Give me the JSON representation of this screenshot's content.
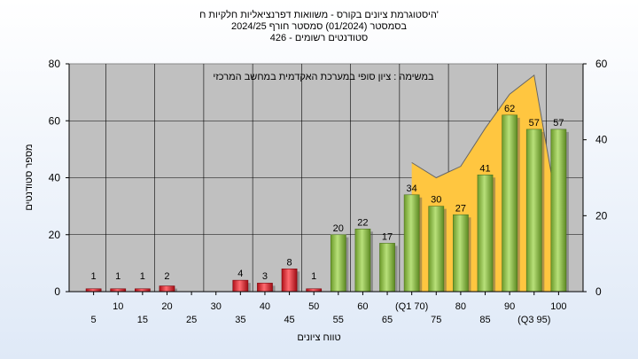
{
  "chart_data": {
    "type": "bar",
    "title_lines": [
      "היסטוגרמת ציונים בקורס - משוואות דפרנציאליות חלקיות ח'",
      "בסמסטר  (01/2024)  סמסטר חורף 2024/25",
      "סטודנטים רשומים - 426"
    ],
    "subtitle": "במשימה : ציון סופי במערכת האקדמית במחשב המרכזי",
    "xlabel": "טווח ציונים",
    "ylabel": "מספר סטודנטים",
    "ylim": [
      0,
      80
    ],
    "y2lim": [
      0,
      60
    ],
    "yticks": [
      "0",
      "20",
      "40",
      "60",
      "80"
    ],
    "y2ticks": [
      "0",
      "20",
      "40",
      "60"
    ],
    "categories": [
      "5",
      "10",
      "15",
      "20",
      "25",
      "30",
      "35",
      "40",
      "45",
      "50",
      "55",
      "60",
      "65",
      "(Q1 70)",
      "75",
      "80",
      "85",
      "90",
      "(Q3 95)",
      "100"
    ],
    "values": [
      1,
      1,
      1,
      2,
      0,
      0,
      4,
      3,
      8,
      1,
      20,
      22,
      17,
      34,
      30,
      27,
      41,
      62,
      57,
      57
    ],
    "data_labels": [
      "1",
      "1",
      "1",
      "2",
      "",
      "",
      "4",
      "3",
      "8",
      "1",
      "20",
      "22",
      "17",
      "34",
      "30",
      "27",
      "41",
      "62",
      "57",
      "57"
    ],
    "area_series": {
      "values": [
        null,
        null,
        null,
        null,
        null,
        null,
        null,
        null,
        null,
        null,
        null,
        null,
        null,
        34,
        30,
        33,
        43,
        52,
        57,
        20
      ]
    },
    "colors": {
      "fail_bar": "#e8262e",
      "pass_bar": "#8cc63e",
      "area": "#ffc640",
      "plot_bg": "#c0c0c0",
      "line": "#666666"
    },
    "fail_threshold": 55,
    "grid": true
  }
}
